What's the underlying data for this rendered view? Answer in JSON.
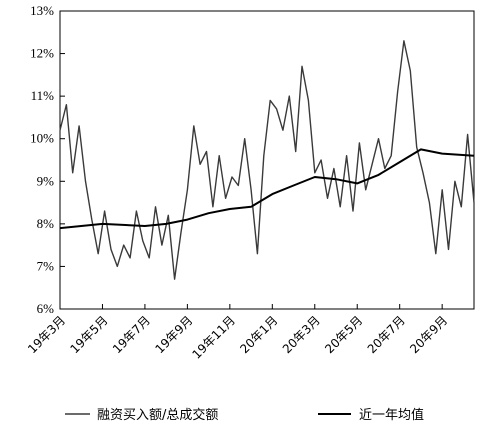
{
  "chart_data": {
    "type": "line",
    "title": "",
    "xlabel": "",
    "ylabel": "",
    "ylim": [
      6,
      13
    ],
    "y_ticks": [
      "6%",
      "7%",
      "8%",
      "9%",
      "10%",
      "11%",
      "12%",
      "13%"
    ],
    "x_ticks": [
      "19年3月",
      "19年5月",
      "19年7月",
      "19年9月",
      "19年11月",
      "20年1月",
      "20年3月",
      "20年5月",
      "20年7月",
      "20年9月"
    ],
    "grid": false,
    "legend_position": "bottom",
    "series": [
      {
        "name": "融资买入额/总成交额",
        "color": "#3a3a3a",
        "x": [
          0,
          0.3,
          0.6,
          0.9,
          1.2,
          1.5,
          1.8,
          2.1,
          2.4,
          2.7,
          3.0,
          3.3,
          3.6,
          3.9,
          4.2,
          4.5,
          4.8,
          5.1,
          5.4,
          5.7,
          6.0,
          6.3,
          6.6,
          6.9,
          7.2,
          7.5,
          7.8,
          8.1,
          8.4,
          8.7,
          9.0,
          9.3,
          9.6,
          9.9,
          10.2,
          10.5,
          10.8,
          11.1,
          11.4,
          11.7,
          12.0,
          12.3,
          12.6,
          12.9,
          13.2,
          13.5,
          13.8,
          14.1,
          14.4,
          14.7,
          15.0,
          15.3,
          15.6,
          15.9,
          16.2,
          16.5,
          16.8,
          17.1,
          17.4,
          17.7,
          18.0,
          18.3,
          18.6,
          18.9,
          19.2,
          19.5
        ],
        "y": [
          10.2,
          10.8,
          9.2,
          10.3,
          9.0,
          8.1,
          7.3,
          8.3,
          7.4,
          7.0,
          7.5,
          7.2,
          8.3,
          7.6,
          7.2,
          8.4,
          7.5,
          8.2,
          6.7,
          7.8,
          8.8,
          10.3,
          9.4,
          9.7,
          8.4,
          9.6,
          8.6,
          9.1,
          8.9,
          10.0,
          8.8,
          7.3,
          9.6,
          10.9,
          10.7,
          10.2,
          11.0,
          9.7,
          11.7,
          10.9,
          9.2,
          9.5,
          8.6,
          9.3,
          8.4,
          9.6,
          8.3,
          9.9,
          8.8,
          9.4,
          10.0,
          9.3,
          9.6,
          11.1,
          12.3,
          11.6,
          9.8,
          9.2,
          8.5,
          7.3,
          8.8,
          7.4,
          9.0,
          8.4,
          10.1,
          8.5
        ]
      },
      {
        "name": "近一年均值",
        "color": "#000000",
        "x": [
          0,
          2,
          4,
          5,
          6,
          7,
          8,
          9,
          10,
          11,
          12,
          13,
          14,
          15,
          16,
          17,
          18,
          19.5
        ],
        "y": [
          7.9,
          8.0,
          7.95,
          8.0,
          8.1,
          8.25,
          8.35,
          8.4,
          8.7,
          8.9,
          9.1,
          9.05,
          8.95,
          9.15,
          9.45,
          9.75,
          9.65,
          9.6
        ]
      }
    ]
  }
}
